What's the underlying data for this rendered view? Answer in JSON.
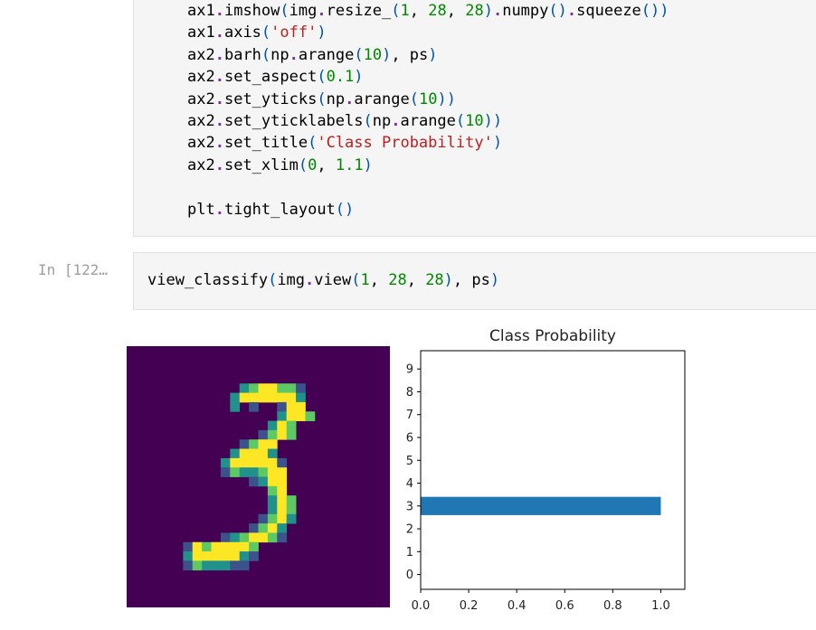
{
  "prompt_label": "In [122…",
  "code_cell_1": {
    "lines": [
      "ax1.imshow(img.resize_(1, 28, 28).numpy().squeeze())",
      "ax1.axis('off')",
      "ax2.barh(np.arange(10), ps)",
      "ax2.set_aspect(0.1)",
      "ax2.set_yticks(np.arange(10))",
      "ax2.set_yticklabels(np.arange(10))",
      "ax2.set_title('Class Probability')",
      "ax2.set_xlim(0, 1.1)",
      "",
      "plt.tight_layout()"
    ]
  },
  "code_cell_2": {
    "line": "view_classify(img.view(1, 28, 28), ps)"
  },
  "digit_image": {
    "label": "3",
    "background_color": "#440154",
    "palette": [
      "#440154",
      "#3b528b",
      "#21918c",
      "#5ec962",
      "#fde725"
    ]
  },
  "chart_data": {
    "type": "bar",
    "orientation": "horizontal",
    "title": "Class Probability",
    "categories": [
      "0",
      "1",
      "2",
      "3",
      "4",
      "5",
      "6",
      "7",
      "8",
      "9"
    ],
    "values": [
      0,
      0,
      0,
      1.0,
      0,
      0,
      0,
      0,
      0,
      0
    ],
    "xlim": [
      0,
      1.1
    ],
    "xticks": [
      "0.0",
      "0.2",
      "0.4",
      "0.6",
      "0.8",
      "1.0"
    ],
    "bar_color": "#1f77b4",
    "grid": false
  }
}
